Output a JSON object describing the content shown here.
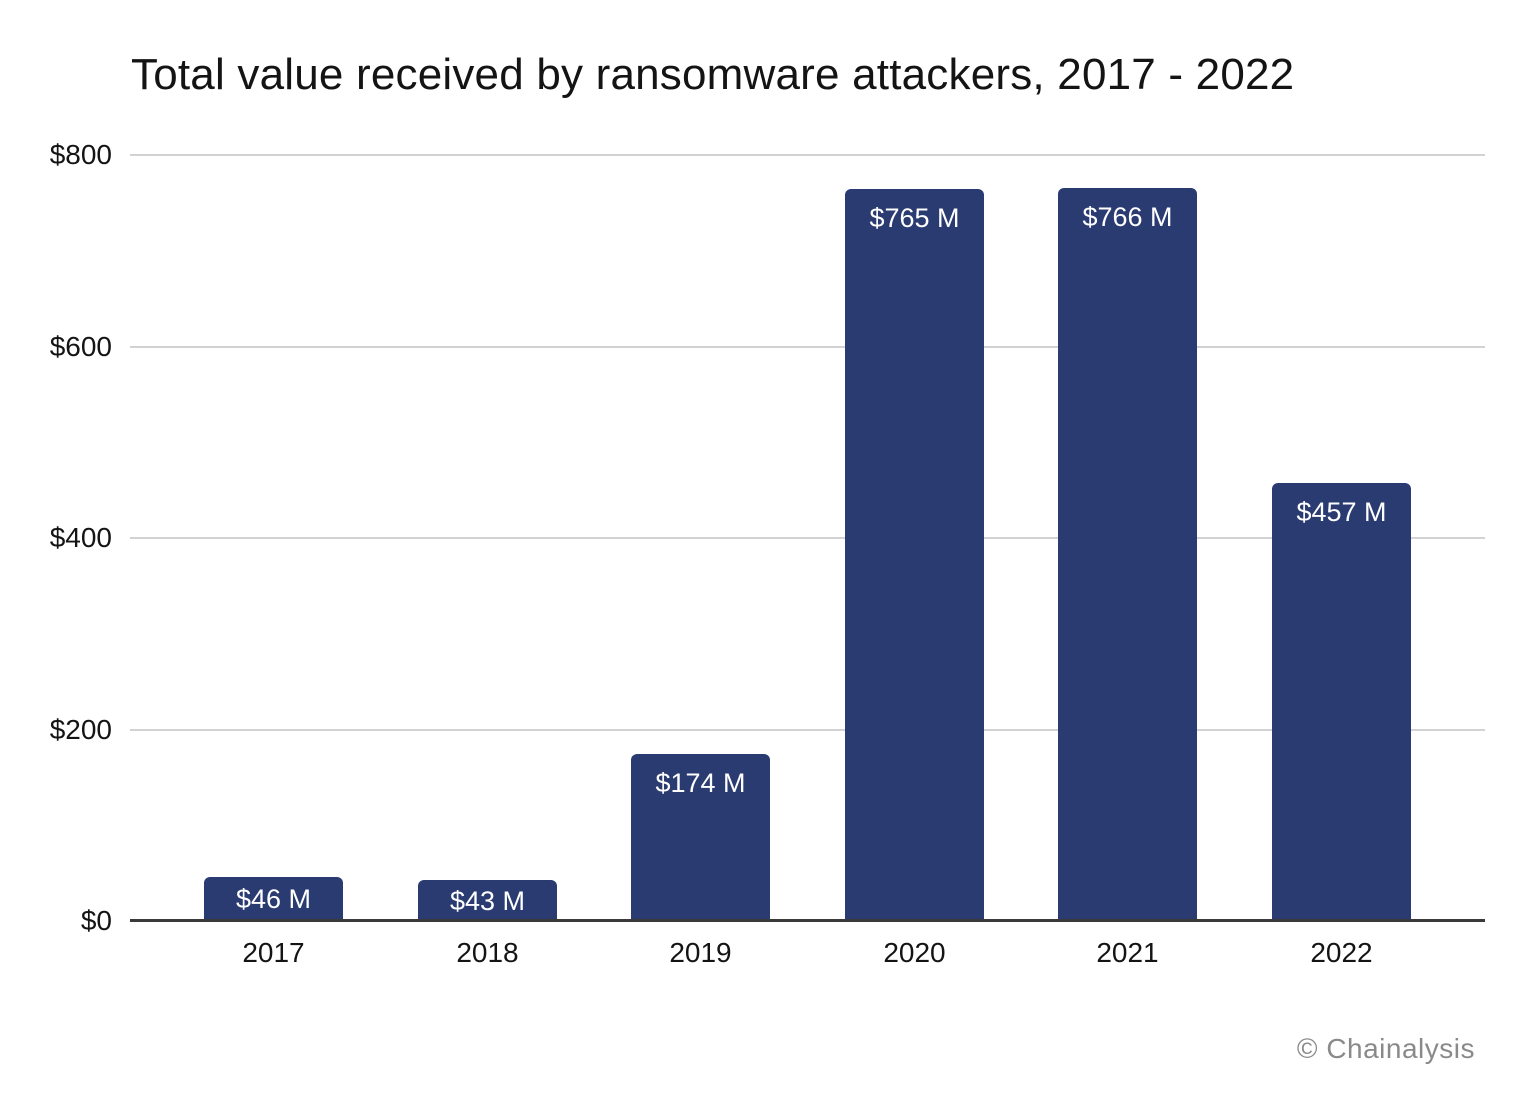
{
  "chart_data": {
    "type": "bar",
    "title": "Total value received by ransomware attackers, 2017 - 2022",
    "categories": [
      "2017",
      "2018",
      "2019",
      "2020",
      "2021",
      "2022"
    ],
    "values": [
      46,
      43,
      174,
      765,
      766,
      457
    ],
    "bar_labels": [
      "$46 M",
      "$43 M",
      "$174 M",
      "$765 M",
      "$766 M",
      "$457 M"
    ],
    "xlabel": "",
    "ylabel": "",
    "ylim": [
      0,
      800
    ],
    "yticks": [
      {
        "value": 800,
        "label": "$800"
      },
      {
        "value": 600,
        "label": "$600"
      },
      {
        "value": 400,
        "label": "$400"
      },
      {
        "value": 200,
        "label": "$200"
      },
      {
        "value": 0,
        "label": "$0"
      }
    ],
    "grid": true,
    "legend": false
  },
  "colors": {
    "background": "#ffffff",
    "bar": "#2a3b72",
    "bar_label": "#ffffff",
    "gridline": "#d2d2d2",
    "axis": "#3a3a3a",
    "text": "#141414",
    "watermark": "#8a8a8a"
  },
  "watermark": {
    "text": "© Chainalysis"
  }
}
